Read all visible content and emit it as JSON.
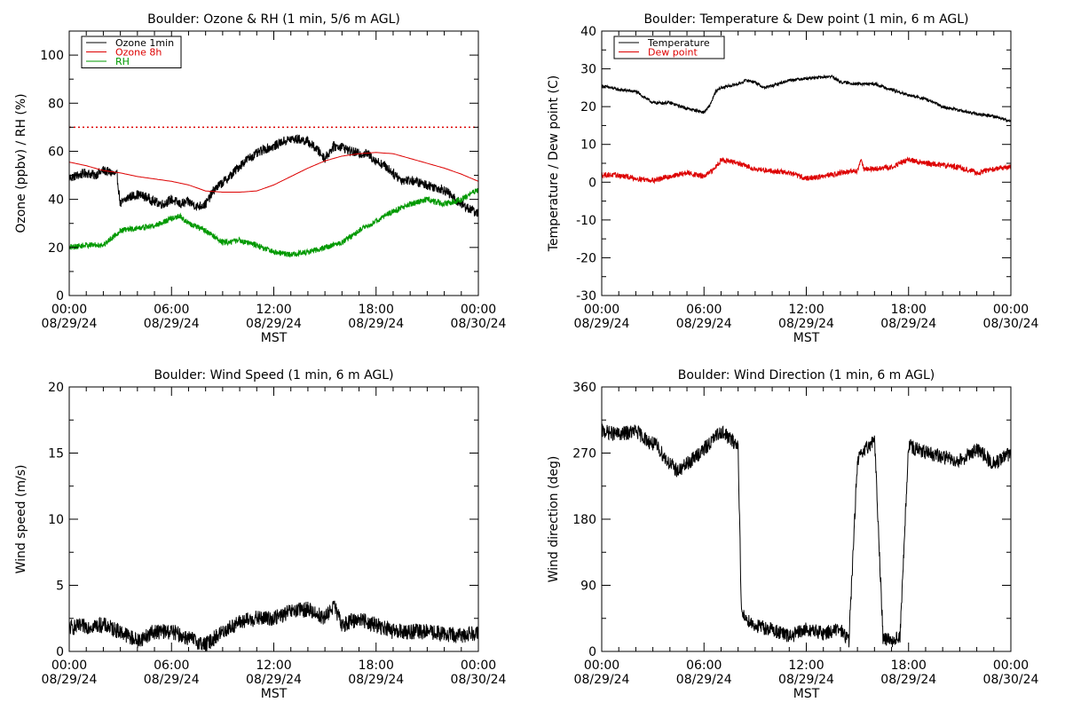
{
  "chart_data": [
    {
      "type": "line",
      "title": "Boulder: Ozone & RH (1 min, 5/6 m AGL)",
      "xlabel": "MST",
      "ylabel": "Ozone (ppbv) / RH (%)",
      "ylim": [
        0,
        110
      ],
      "yticks": [
        0,
        20,
        40,
        60,
        80,
        100
      ],
      "legend_position": "top-left",
      "xticks": [
        {
          "time": "00:00",
          "date": "08/29/24"
        },
        {
          "time": "06:00",
          "date": "08/29/24"
        },
        {
          "time": "12:00",
          "date": "08/29/24"
        },
        {
          "time": "18:00",
          "date": "08/29/24"
        },
        {
          "time": "00:00",
          "date": "08/30/24"
        }
      ],
      "reference_line": {
        "y": 70,
        "color": "#dd0000",
        "style": "dotted"
      },
      "series": [
        {
          "name": "Ozone 1min",
          "color": "#000000",
          "noise": 2.0,
          "points": [
            [
              0,
              49
            ],
            [
              0.5,
              50
            ],
            [
              1,
              51
            ],
            [
              1.5,
              50
            ],
            [
              2,
              52
            ],
            [
              2.5,
              51
            ],
            [
              2.8,
              50
            ],
            [
              3,
              38
            ],
            [
              3.5,
              41
            ],
            [
              4,
              42
            ],
            [
              4.5,
              41
            ],
            [
              5,
              39
            ],
            [
              5.5,
              38
            ],
            [
              6,
              40
            ],
            [
              6.5,
              38
            ],
            [
              7,
              39
            ],
            [
              7.5,
              37
            ],
            [
              8,
              38
            ],
            [
              8.5,
              44
            ],
            [
              9,
              47
            ],
            [
              9.5,
              50
            ],
            [
              10,
              54
            ],
            [
              10.5,
              57
            ],
            [
              11,
              59
            ],
            [
              11.5,
              61
            ],
            [
              12,
              62
            ],
            [
              12.5,
              64
            ],
            [
              13,
              65
            ],
            [
              13.5,
              65
            ],
            [
              14,
              64
            ],
            [
              14.5,
              61
            ],
            [
              15,
              57
            ],
            [
              15.5,
              62
            ],
            [
              16,
              62
            ],
            [
              16.5,
              60
            ],
            [
              17,
              59
            ],
            [
              17.5,
              59
            ],
            [
              18,
              56
            ],
            [
              18.5,
              54
            ],
            [
              19,
              51
            ],
            [
              19.5,
              48
            ],
            [
              20,
              48
            ],
            [
              20.5,
              47
            ],
            [
              21,
              46
            ],
            [
              21.5,
              45
            ],
            [
              22,
              44
            ],
            [
              22.5,
              41
            ],
            [
              23,
              38
            ],
            [
              23.5,
              36
            ],
            [
              24,
              34
            ]
          ]
        },
        {
          "name": "Ozone 8h",
          "color": "#dd0000",
          "noise": 0,
          "points": [
            [
              0,
              55.5
            ],
            [
              1,
              54
            ],
            [
              2,
              52
            ],
            [
              3,
              51
            ],
            [
              4,
              49.5
            ],
            [
              5,
              48.5
            ],
            [
              6,
              47.5
            ],
            [
              7,
              46
            ],
            [
              8,
              43.5
            ],
            [
              9,
              43
            ],
            [
              10,
              43
            ],
            [
              11,
              43.5
            ],
            [
              12,
              46
            ],
            [
              13,
              49.5
            ],
            [
              14,
              53
            ],
            [
              15,
              56
            ],
            [
              16,
              58
            ],
            [
              17,
              59
            ],
            [
              18,
              59.5
            ],
            [
              19,
              59
            ],
            [
              20,
              57
            ],
            [
              21,
              55
            ],
            [
              22,
              53
            ],
            [
              23,
              50.5
            ],
            [
              24,
              47.5
            ]
          ]
        },
        {
          "name": "RH",
          "color": "#009900",
          "noise": 1.2,
          "points": [
            [
              0,
              20
            ],
            [
              1,
              21
            ],
            [
              2,
              21
            ],
            [
              3,
              27
            ],
            [
              4,
              28
            ],
            [
              5,
              29
            ],
            [
              6,
              32
            ],
            [
              6.5,
              33
            ],
            [
              7,
              30
            ],
            [
              8,
              27
            ],
            [
              9,
              22
            ],
            [
              10,
              23
            ],
            [
              11,
              21
            ],
            [
              12,
              18
            ],
            [
              13,
              17
            ],
            [
              14,
              18
            ],
            [
              15,
              20
            ],
            [
              16,
              22
            ],
            [
              17,
              27
            ],
            [
              18,
              31
            ],
            [
              19,
              35
            ],
            [
              20,
              38
            ],
            [
              21,
              40
            ],
            [
              22,
              38
            ],
            [
              23,
              40
            ],
            [
              24,
              44
            ]
          ]
        }
      ]
    },
    {
      "type": "line",
      "title": "Boulder: Temperature & Dew point (1 min, 6 m AGL)",
      "xlabel": "MST",
      "ylabel": "Temperature / Dew point (C)",
      "ylim": [
        -30,
        40
      ],
      "yticks": [
        -30,
        -20,
        -10,
        0,
        10,
        20,
        30,
        40
      ],
      "legend_position": "top-left",
      "xticks": [
        {
          "time": "00:00",
          "date": "08/29/24"
        },
        {
          "time": "06:00",
          "date": "08/29/24"
        },
        {
          "time": "12:00",
          "date": "08/29/24"
        },
        {
          "time": "18:00",
          "date": "08/29/24"
        },
        {
          "time": "00:00",
          "date": "08/30/24"
        }
      ],
      "series": [
        {
          "name": "Temperature",
          "color": "#000000",
          "noise": 0.4,
          "points": [
            [
              0,
              25.5
            ],
            [
              1,
              24.5
            ],
            [
              2,
              24
            ],
            [
              2.5,
              22.5
            ],
            [
              3,
              21
            ],
            [
              4,
              21
            ],
            [
              5,
              19.5
            ],
            [
              6,
              18.5
            ],
            [
              6.3,
              20
            ],
            [
              6.7,
              24
            ],
            [
              7,
              25
            ],
            [
              8,
              26
            ],
            [
              8.5,
              27
            ],
            [
              9,
              26.5
            ],
            [
              9.5,
              25
            ],
            [
              10,
              25.5
            ],
            [
              11,
              27
            ],
            [
              12,
              27.5
            ],
            [
              13,
              27.8
            ],
            [
              13.5,
              28
            ],
            [
              14,
              26.5
            ],
            [
              15,
              26
            ],
            [
              16,
              26
            ],
            [
              17,
              24.5
            ],
            [
              18,
              23
            ],
            [
              19,
              22
            ],
            [
              20,
              20
            ],
            [
              21,
              19
            ],
            [
              22,
              18
            ],
            [
              23,
              17.5
            ],
            [
              24,
              16
            ]
          ]
        },
        {
          "name": "Dew point",
          "color": "#dd0000",
          "noise": 0.7,
          "points": [
            [
              0,
              2
            ],
            [
              1,
              1.8
            ],
            [
              2,
              1
            ],
            [
              3,
              0.5
            ],
            [
              4,
              1.5
            ],
            [
              5,
              2.5
            ],
            [
              6,
              1.5
            ],
            [
              6.5,
              3
            ],
            [
              7,
              6
            ],
            [
              8,
              5
            ],
            [
              9,
              3.5
            ],
            [
              10,
              3
            ],
            [
              11,
              2.5
            ],
            [
              12,
              1
            ],
            [
              13,
              1.5
            ],
            [
              14,
              2.5
            ],
            [
              15,
              3
            ],
            [
              15.2,
              6
            ],
            [
              15.4,
              3.5
            ],
            [
              16,
              3.5
            ],
            [
              17,
              4
            ],
            [
              18,
              6
            ],
            [
              19,
              5
            ],
            [
              20,
              4.5
            ],
            [
              21,
              4
            ],
            [
              22,
              2.5
            ],
            [
              23,
              3.5
            ],
            [
              24,
              4
            ]
          ]
        }
      ]
    },
    {
      "type": "line",
      "title": "Boulder: Wind Speed (1 min, 6 m AGL)",
      "xlabel": "MST",
      "ylabel": "Wind speed (m/s)",
      "ylim": [
        0,
        20
      ],
      "yticks": [
        0,
        5,
        10,
        15,
        20
      ],
      "xticks": [
        {
          "time": "00:00",
          "date": "08/29/24"
        },
        {
          "time": "06:00",
          "date": "08/29/24"
        },
        {
          "time": "12:00",
          "date": "08/29/24"
        },
        {
          "time": "18:00",
          "date": "08/29/24"
        },
        {
          "time": "00:00",
          "date": "08/30/24"
        }
      ],
      "series": [
        {
          "name": "",
          "color": "#000000",
          "noise": 0.6,
          "points": [
            [
              0,
              1.8
            ],
            [
              2,
              2
            ],
            [
              3,
              1.5
            ],
            [
              4,
              0.8
            ],
            [
              5,
              1.5
            ],
            [
              6,
              1.5
            ],
            [
              7,
              1
            ],
            [
              8,
              0.5
            ],
            [
              9,
              1.5
            ],
            [
              10,
              2.2
            ],
            [
              11,
              2.5
            ],
            [
              12,
              2.5
            ],
            [
              13,
              3
            ],
            [
              14,
              3.2
            ],
            [
              15,
              2.5
            ],
            [
              15.5,
              3.5
            ],
            [
              16,
              2
            ],
            [
              17,
              2.5
            ],
            [
              18,
              2
            ],
            [
              19,
              1.5
            ],
            [
              20,
              1.5
            ],
            [
              21,
              1.5
            ],
            [
              22,
              1.3
            ],
            [
              23,
              1.2
            ],
            [
              24,
              1.5
            ]
          ]
        }
      ]
    },
    {
      "type": "line",
      "title": "Boulder: Wind Direction (1 min, 6 m AGL)",
      "xlabel": "MST",
      "ylabel": "Wind direction (deg)",
      "ylim": [
        0,
        360
      ],
      "yticks": [
        0,
        90,
        180,
        270,
        360
      ],
      "xticks": [
        {
          "time": "00:00",
          "date": "08/29/24"
        },
        {
          "time": "06:00",
          "date": "08/29/24"
        },
        {
          "time": "12:00",
          "date": "08/29/24"
        },
        {
          "time": "18:00",
          "date": "08/29/24"
        },
        {
          "time": "00:00",
          "date": "08/30/24"
        }
      ],
      "series": [
        {
          "name": "",
          "color": "#000000",
          "noise": 10,
          "points": [
            [
              0,
              300
            ],
            [
              1,
              295
            ],
            [
              2,
              300
            ],
            [
              2.8,
              285
            ],
            [
              3.2,
              280
            ],
            [
              4,
              255
            ],
            [
              4.5,
              245
            ],
            [
              5,
              255
            ],
            [
              6,
              275
            ],
            [
              7,
              300
            ],
            [
              8,
              280
            ],
            [
              8.2,
              50
            ],
            [
              9,
              35
            ],
            [
              10,
              30
            ],
            [
              11,
              20
            ],
            [
              12,
              30
            ],
            [
              13,
              25
            ],
            [
              14,
              30
            ],
            [
              14.5,
              15
            ],
            [
              15,
              260
            ],
            [
              16,
              290
            ],
            [
              16.5,
              20
            ],
            [
              17,
              15
            ],
            [
              17.5,
              20
            ],
            [
              18,
              280
            ],
            [
              19,
              270
            ],
            [
              20,
              265
            ],
            [
              21,
              260
            ],
            [
              22,
              275
            ],
            [
              23,
              255
            ],
            [
              24,
              270
            ]
          ]
        }
      ]
    }
  ]
}
